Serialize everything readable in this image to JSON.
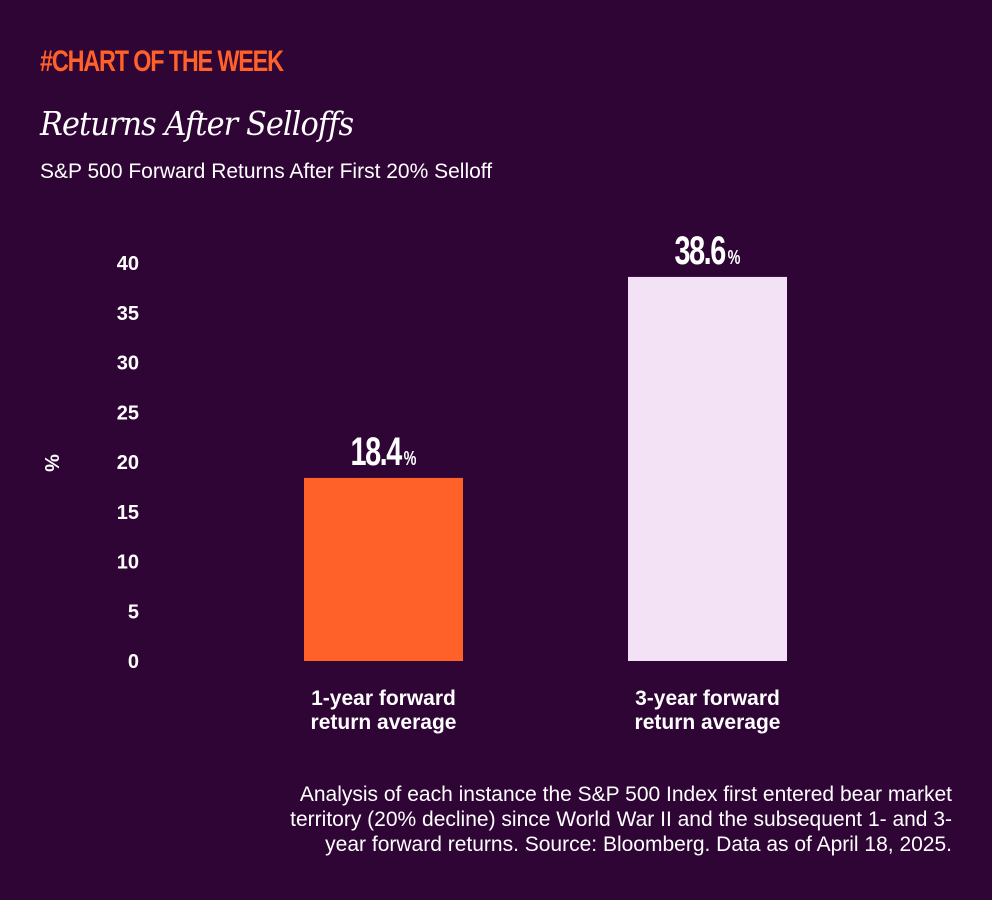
{
  "header": {
    "kicker": "#CHART OF THE WEEK",
    "title": "Returns After Selloffs",
    "subtitle": "S&P 500 Forward Returns After First 20% Selloff"
  },
  "colors": {
    "background": "#2f0535",
    "accent": "#ff6128",
    "bar_1": "#ff6128",
    "bar_2": "#f3e1f6",
    "text": "#ffffff"
  },
  "chart_data": {
    "type": "bar",
    "title": "Returns After Selloffs",
    "subtitle": "S&P 500 Forward Returns After First 20% Selloff",
    "xlabel": "",
    "ylabel": "%",
    "categories": [
      [
        "1-year forward",
        "return average"
      ],
      [
        "3-year forward",
        "return average"
      ]
    ],
    "values": [
      18.4,
      38.6
    ],
    "value_labels": [
      "18.4",
      "38.6"
    ],
    "value_suffix": "%",
    "bar_colors": [
      "#ff6128",
      "#f3e1f6"
    ],
    "ylim": [
      0,
      40
    ],
    "yticks": [
      0,
      5,
      10,
      15,
      20,
      25,
      30,
      35,
      40
    ],
    "grid": false,
    "legend": "none"
  },
  "footnote": {
    "lines": [
      "Analysis of each instance the S&P 500 Index first entered bear market",
      "territory (20% decline) since World War II and the subsequent 1- and 3-",
      "year forward returns. Source: Bloomberg. Data as of April 18, 2025."
    ]
  }
}
